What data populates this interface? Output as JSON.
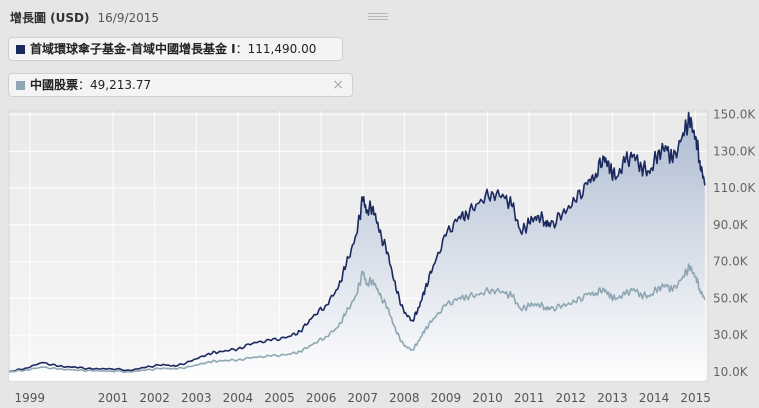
{
  "header": {
    "title": "增長圖 (USD)",
    "date": "16/9/2015"
  },
  "legend": [
    {
      "name": "首域環球傘子基金-首域中國增長基金 I",
      "value": "111,490.00",
      "color": "#1b2a5e"
    },
    {
      "name": "中國股票",
      "value": "49,213.77",
      "color": "#8fa7b3",
      "close": "×"
    }
  ],
  "chart_data": {
    "type": "area",
    "x_ticks": [
      "1999",
      "2001",
      "2002",
      "2003",
      "2004",
      "2005",
      "2006",
      "2007",
      "2008",
      "2009",
      "2010",
      "2011",
      "2012",
      "2013",
      "2014",
      "2015"
    ],
    "y_ticks": [
      "10.0K",
      "30.0K",
      "50.0K",
      "70.0K",
      "90.0K",
      "110.0K",
      "130.0K",
      "150.0K"
    ],
    "ylim": [
      5000,
      152000
    ],
    "xlim": [
      1999.0,
      2015.75
    ],
    "series": [
      {
        "name": "首域環球傘子基金-首域中國增長基金 I",
        "color": "#1b2a5e",
        "x": [
          1999.0,
          1999.4,
          1999.8,
          2000.2,
          2000.6,
          2001.0,
          2001.4,
          2001.9,
          2002.3,
          2002.7,
          2003.0,
          2003.4,
          2003.8,
          2004.1,
          2004.5,
          2004.9,
          2005.3,
          2005.7,
          2006.0,
          2006.3,
          2006.6,
          2006.9,
          2007.1,
          2007.35,
          2007.5,
          2007.6,
          2007.75,
          2007.9,
          2008.1,
          2008.3,
          2008.5,
          2008.7,
          2008.85,
          2009.0,
          2009.2,
          2009.5,
          2009.8,
          2010.0,
          2010.3,
          2010.6,
          2010.9,
          2011.1,
          2011.3,
          2011.5,
          2011.7,
          2011.9,
          2012.0,
          2012.3,
          2012.6,
          2012.9,
          2013.1,
          2013.3,
          2013.45,
          2013.6,
          2013.8,
          2014.0,
          2014.2,
          2014.4,
          2014.6,
          2014.8,
          2014.95,
          2015.2,
          2015.35,
          2015.5,
          2015.6,
          2015.72
        ],
        "values": [
          10000,
          12000,
          15000,
          13000,
          12500,
          11500,
          11800,
          10800,
          12500,
          14000,
          13000,
          16000,
          20000,
          21000,
          22500,
          26000,
          27000,
          29000,
          32000,
          40000,
          46000,
          55000,
          68000,
          85000,
          104000,
          98000,
          100000,
          86000,
          75000,
          55000,
          42000,
          38000,
          45000,
          55000,
          68000,
          84000,
          94000,
          96000,
          102000,
          108000,
          105000,
          100000,
          86000,
          91000,
          95000,
          92000,
          89000,
          96000,
          103000,
          112000,
          118000,
          127000,
          120000,
          116000,
          124000,
          128000,
          122000,
          118000,
          130000,
          132000,
          124000,
          140000,
          147000,
          138000,
          125000,
          111490
        ]
      },
      {
        "name": "中國股票",
        "color": "#8fa7b3",
        "x": [
          1999.0,
          1999.4,
          1999.8,
          2000.2,
          2000.6,
          2001.0,
          2001.4,
          2001.9,
          2002.3,
          2002.7,
          2003.0,
          2003.4,
          2003.8,
          2004.1,
          2004.5,
          2004.9,
          2005.3,
          2005.7,
          2006.0,
          2006.3,
          2006.6,
          2006.9,
          2007.1,
          2007.35,
          2007.5,
          2007.6,
          2007.75,
          2007.9,
          2008.1,
          2008.3,
          2008.5,
          2008.7,
          2008.85,
          2009.0,
          2009.2,
          2009.5,
          2009.8,
          2010.0,
          2010.3,
          2010.6,
          2010.9,
          2011.1,
          2011.3,
          2011.5,
          2011.7,
          2011.9,
          2012.0,
          2012.3,
          2012.6,
          2012.9,
          2013.1,
          2013.3,
          2013.45,
          2013.6,
          2013.8,
          2014.0,
          2014.2,
          2014.4,
          2014.6,
          2014.8,
          2014.95,
          2015.2,
          2015.35,
          2015.5,
          2015.6,
          2015.72
        ],
        "values": [
          10000,
          11000,
          12500,
          11500,
          11000,
          10500,
          10500,
          10000,
          11000,
          12000,
          11500,
          13000,
          15500,
          16000,
          16500,
          18000,
          18500,
          19500,
          21000,
          25000,
          29000,
          34000,
          42000,
          52000,
          64000,
          58000,
          60000,
          52000,
          45000,
          32000,
          24000,
          22000,
          27000,
          33000,
          39000,
          46000,
          50000,
          51000,
          52000,
          55000,
          53000,
          51000,
          44000,
          46000,
          47000,
          45000,
          44000,
          46000,
          48000,
          52000,
          53000,
          55000,
          51000,
          50000,
          52000,
          55000,
          52000,
          51000,
          56000,
          57000,
          54000,
          62000,
          67000,
          62000,
          55000,
          49214
        ]
      }
    ]
  }
}
